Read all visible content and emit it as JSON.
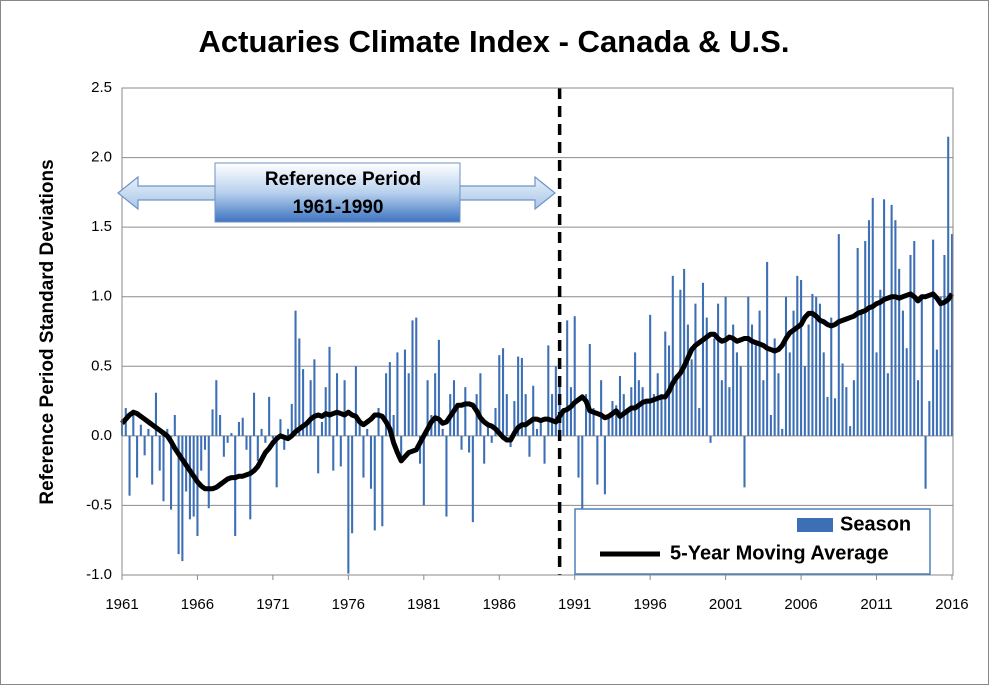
{
  "chart_data": {
    "type": "bar",
    "title": "Actuaries Climate Index - Canada & U.S.",
    "y_label": "Reference Period Standard Deviations",
    "annotation": {
      "line1": "Reference Period",
      "line2": "1961-1990",
      "x": 1990
    },
    "legend": "bottom-right",
    "grid": true,
    "xlim": [
      1961,
      2016.2
    ],
    "xticks": [
      1961,
      1966,
      1971,
      1976,
      1981,
      1986,
      1991,
      1996,
      2001,
      2006,
      2011,
      2016
    ],
    "ylim": [
      -1.0,
      2.5
    ],
    "yticks": [
      {
        "value": -1.0,
        "label": "-1.0"
      },
      -0.5,
      {
        "value": 0,
        "label": "0.0"
      },
      0.5,
      {
        "value": 1.0,
        "label": "1.0"
      },
      1.5,
      {
        "value": 2.0,
        "label": "2.0"
      },
      2.5
    ],
    "x": [
      1961,
      1961.25,
      1961.5,
      1961.75,
      1962,
      1962.25,
      1962.5,
      1962.75,
      1963,
      1963.25,
      1963.5,
      1963.75,
      1964,
      1964.25,
      1964.5,
      1964.75,
      1965,
      1965.25,
      1965.5,
      1965.75,
      1966,
      1966.25,
      1966.5,
      1966.75,
      1967,
      1967.25,
      1967.5,
      1967.75,
      1968,
      1968.25,
      1968.5,
      1968.75,
      1969,
      1969.25,
      1969.5,
      1969.75,
      1970,
      1970.25,
      1970.5,
      1970.75,
      1971,
      1971.25,
      1971.5,
      1971.75,
      1972,
      1972.25,
      1972.5,
      1972.75,
      1973,
      1973.25,
      1973.5,
      1973.75,
      1974,
      1974.25,
      1974.5,
      1974.75,
      1975,
      1975.25,
      1975.5,
      1975.75,
      1976,
      1976.25,
      1976.5,
      1976.75,
      1977,
      1977.25,
      1977.5,
      1977.75,
      1978,
      1978.25,
      1978.5,
      1978.75,
      1979,
      1979.25,
      1979.5,
      1979.75,
      1980,
      1980.25,
      1980.5,
      1980.75,
      1981,
      1981.25,
      1981.5,
      1981.75,
      1982,
      1982.25,
      1982.5,
      1982.75,
      1983,
      1983.25,
      1983.5,
      1983.75,
      1984,
      1984.25,
      1984.5,
      1984.75,
      1985,
      1985.25,
      1985.5,
      1985.75,
      1986,
      1986.25,
      1986.5,
      1986.75,
      1987,
      1987.25,
      1987.5,
      1987.75,
      1988,
      1988.25,
      1988.5,
      1988.75,
      1989,
      1989.25,
      1989.5,
      1989.75,
      1990,
      1990.25,
      1990.5,
      1990.75,
      1991,
      1991.25,
      1991.5,
      1991.75,
      1992,
      1992.25,
      1992.5,
      1992.75,
      1993,
      1993.25,
      1993.5,
      1993.75,
      1994,
      1994.25,
      1994.5,
      1994.75,
      1995,
      1995.25,
      1995.5,
      1995.75,
      1996,
      1996.25,
      1996.5,
      1996.75,
      1997,
      1997.25,
      1997.5,
      1997.75,
      1998,
      1998.25,
      1998.5,
      1998.75,
      1999,
      1999.25,
      1999.5,
      1999.75,
      2000,
      2000.25,
      2000.5,
      2000.75,
      2001,
      2001.25,
      2001.5,
      2001.75,
      2002,
      2002.25,
      2002.5,
      2002.75,
      2003,
      2003.25,
      2003.5,
      2003.75,
      2004,
      2004.25,
      2004.5,
      2004.75,
      2005,
      2005.25,
      2005.5,
      2005.75,
      2006,
      2006.25,
      2006.5,
      2006.75,
      2007,
      2007.25,
      2007.5,
      2007.75,
      2008,
      2008.25,
      2008.5,
      2008.75,
      2009,
      2009.25,
      2009.5,
      2009.75,
      2010,
      2010.25,
      2010.5,
      2010.75,
      2011,
      2011.25,
      2011.5,
      2011.75,
      2012,
      2012.25,
      2012.5,
      2012.75,
      2013,
      2013.25,
      2013.5,
      2013.75,
      2014,
      2014.25,
      2014.5,
      2014.75,
      2015,
      2015.25,
      2015.5,
      2015.75,
      2016
    ],
    "series": [
      {
        "name": "Season",
        "type": "bar",
        "color": "#3d6fb6",
        "values": [
          0.12,
          0.2,
          -0.43,
          0.18,
          -0.3,
          0.08,
          -0.14,
          0.05,
          -0.35,
          0.31,
          -0.25,
          -0.47,
          0.05,
          -0.53,
          0.15,
          -0.85,
          -0.9,
          -0.4,
          -0.6,
          -0.58,
          -0.72,
          -0.25,
          -0.1,
          -0.52,
          0.19,
          0.4,
          0.15,
          -0.15,
          -0.05,
          0.02,
          -0.72,
          0.1,
          0.13,
          -0.1,
          -0.6,
          0.31,
          -0.18,
          0.05,
          -0.05,
          0.28,
          -0.02,
          -0.37,
          0.12,
          -0.1,
          0.05,
          0.23,
          0.9,
          0.7,
          0.48,
          0.1,
          0.4,
          0.55,
          -0.27,
          0.1,
          0.35,
          0.64,
          -0.25,
          0.45,
          -0.22,
          0.4,
          -0.99,
          -0.7,
          0.5,
          0.1,
          -0.3,
          0.05,
          -0.38,
          -0.68,
          0.2,
          -0.65,
          0.45,
          0.53,
          0.15,
          0.6,
          -0.15,
          0.62,
          0.45,
          0.83,
          0.85,
          -0.2,
          -0.5,
          0.4,
          0.15,
          0.45,
          0.69,
          0.05,
          -0.58,
          0.3,
          0.4,
          0.2,
          -0.1,
          0.35,
          -0.12,
          -0.62,
          0.3,
          0.45,
          -0.2,
          0.1,
          -0.05,
          0.2,
          0.58,
          0.63,
          0.3,
          -0.08,
          0.25,
          0.57,
          0.56,
          0.3,
          -0.15,
          0.36,
          0.05,
          0.12,
          -0.2,
          0.65,
          0.3,
          0.5,
          0.4,
          0.2,
          0.83,
          0.35,
          0.86,
          -0.3,
          -0.58,
          0.3,
          0.66,
          0.2,
          -0.35,
          0.4,
          -0.42,
          0.15,
          0.25,
          0.22,
          0.43,
          0.3,
          0.2,
          0.35,
          0.6,
          0.4,
          0.35,
          0.25,
          0.87,
          0.3,
          0.45,
          0.3,
          0.75,
          0.65,
          1.15,
          0.4,
          1.05,
          1.2,
          0.8,
          0.55,
          0.95,
          0.2,
          1.1,
          0.85,
          -0.05,
          0.7,
          0.95,
          0.4,
          1.0,
          0.35,
          0.8,
          0.6,
          0.5,
          -0.37,
          1.0,
          0.8,
          0.65,
          0.9,
          0.4,
          1.25,
          0.15,
          0.7,
          0.45,
          0.05,
          1.0,
          0.6,
          0.9,
          1.15,
          1.12,
          0.5,
          0.8,
          1.02,
          1.0,
          0.95,
          0.6,
          0.28,
          0.85,
          0.27,
          1.45,
          0.52,
          0.35,
          0.07,
          0.4,
          1.35,
          0.9,
          1.4,
          1.55,
          1.71,
          0.6,
          1.05,
          1.7,
          0.45,
          1.66,
          1.55,
          1.2,
          0.9,
          0.63,
          1.3,
          1.4,
          0.4,
          1.0,
          -0.38,
          0.25,
          1.41,
          0.62,
          1.0,
          1.3,
          2.15,
          1.45
        ]
      },
      {
        "name": "5-Year Moving Average",
        "type": "line",
        "color": "#000000",
        "values": [
          0.09,
          0.12,
          0.15,
          0.17,
          0.16,
          0.14,
          0.12,
          0.1,
          0.08,
          0.06,
          0.04,
          0.02,
          0.0,
          -0.04,
          -0.09,
          -0.13,
          -0.17,
          -0.21,
          -0.25,
          -0.29,
          -0.33,
          -0.36,
          -0.38,
          -0.38,
          -0.38,
          -0.37,
          -0.35,
          -0.33,
          -0.31,
          -0.3,
          -0.3,
          -0.29,
          -0.29,
          -0.28,
          -0.27,
          -0.25,
          -0.22,
          -0.17,
          -0.12,
          -0.09,
          -0.05,
          -0.02,
          0.0,
          -0.01,
          -0.02,
          0.0,
          0.03,
          0.05,
          0.07,
          0.09,
          0.12,
          0.14,
          0.15,
          0.14,
          0.16,
          0.15,
          0.16,
          0.17,
          0.16,
          0.15,
          0.17,
          0.15,
          0.14,
          0.1,
          0.08,
          0.1,
          0.12,
          0.15,
          0.15,
          0.14,
          0.1,
          0.05,
          -0.05,
          -0.12,
          -0.18,
          -0.15,
          -0.12,
          -0.11,
          -0.1,
          -0.05,
          0.0,
          0.05,
          0.1,
          0.13,
          0.12,
          0.09,
          0.1,
          0.14,
          0.18,
          0.22,
          0.22,
          0.23,
          0.23,
          0.22,
          0.18,
          0.13,
          0.1,
          0.08,
          0.07,
          0.05,
          0.02,
          -0.01,
          -0.03,
          -0.03,
          0.02,
          0.06,
          0.08,
          0.08,
          0.1,
          0.12,
          0.12,
          0.11,
          0.12,
          0.12,
          0.11,
          0.1,
          0.14,
          0.18,
          0.19,
          0.21,
          0.24,
          0.26,
          0.28,
          0.25,
          0.18,
          0.17,
          0.16,
          0.15,
          0.13,
          0.14,
          0.16,
          0.18,
          0.14,
          0.16,
          0.18,
          0.2,
          0.2,
          0.22,
          0.24,
          0.25,
          0.25,
          0.26,
          0.27,
          0.28,
          0.28,
          0.32,
          0.38,
          0.42,
          0.45,
          0.5,
          0.56,
          0.62,
          0.65,
          0.67,
          0.69,
          0.71,
          0.73,
          0.73,
          0.7,
          0.68,
          0.69,
          0.71,
          0.7,
          0.68,
          0.69,
          0.7,
          0.7,
          0.68,
          0.67,
          0.66,
          0.65,
          0.63,
          0.62,
          0.61,
          0.62,
          0.65,
          0.7,
          0.74,
          0.76,
          0.78,
          0.8,
          0.85,
          0.88,
          0.88,
          0.86,
          0.83,
          0.82,
          0.8,
          0.79,
          0.8,
          0.82,
          0.83,
          0.84,
          0.85,
          0.86,
          0.88,
          0.89,
          0.9,
          0.92,
          0.93,
          0.95,
          0.96,
          0.98,
          0.99,
          1.0,
          1.0,
          0.99,
          1.0,
          1.01,
          1.02,
          1.0,
          0.97,
          1.0,
          1.0,
          1.01,
          1.02,
          0.99,
          0.95,
          0.96,
          0.98,
          1.02
        ]
      }
    ]
  }
}
